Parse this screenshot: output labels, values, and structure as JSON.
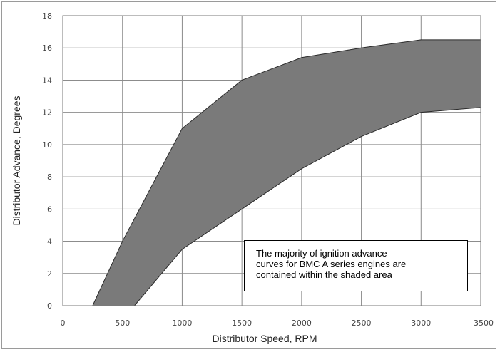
{
  "chart_data": {
    "type": "area",
    "xlabel": "Distributor Speed, RPM",
    "ylabel": "Distributor Advance, Degrees",
    "xlim": [
      0,
      3500
    ],
    "ylim": [
      0,
      18
    ],
    "x_ticks": [
      "0",
      "500",
      "1000",
      "1500",
      "2000",
      "2500",
      "3000",
      "3500"
    ],
    "y_ticks": [
      "0",
      "2",
      "4",
      "6",
      "8",
      "10",
      "12",
      "14",
      "16",
      "18"
    ],
    "grid": true,
    "band_color": "#7a7a7a",
    "series": [
      {
        "role": "upper-bound",
        "x": [
          250,
          500,
          1000,
          1500,
          2000,
          2500,
          3000,
          3500
        ],
        "y": [
          0,
          4,
          11,
          14,
          15.4,
          16,
          16.5,
          16.5
        ]
      },
      {
        "role": "lower-bound",
        "x": [
          600,
          1000,
          1500,
          2000,
          2500,
          3000,
          3500
        ],
        "y": [
          0,
          3.5,
          6,
          8.5,
          10.5,
          12,
          12.3
        ]
      }
    ],
    "annotation": {
      "lines": [
        "The majority of ignition advance",
        "curves for BMC A series engines are",
        "contained within the shaded area"
      ]
    }
  }
}
